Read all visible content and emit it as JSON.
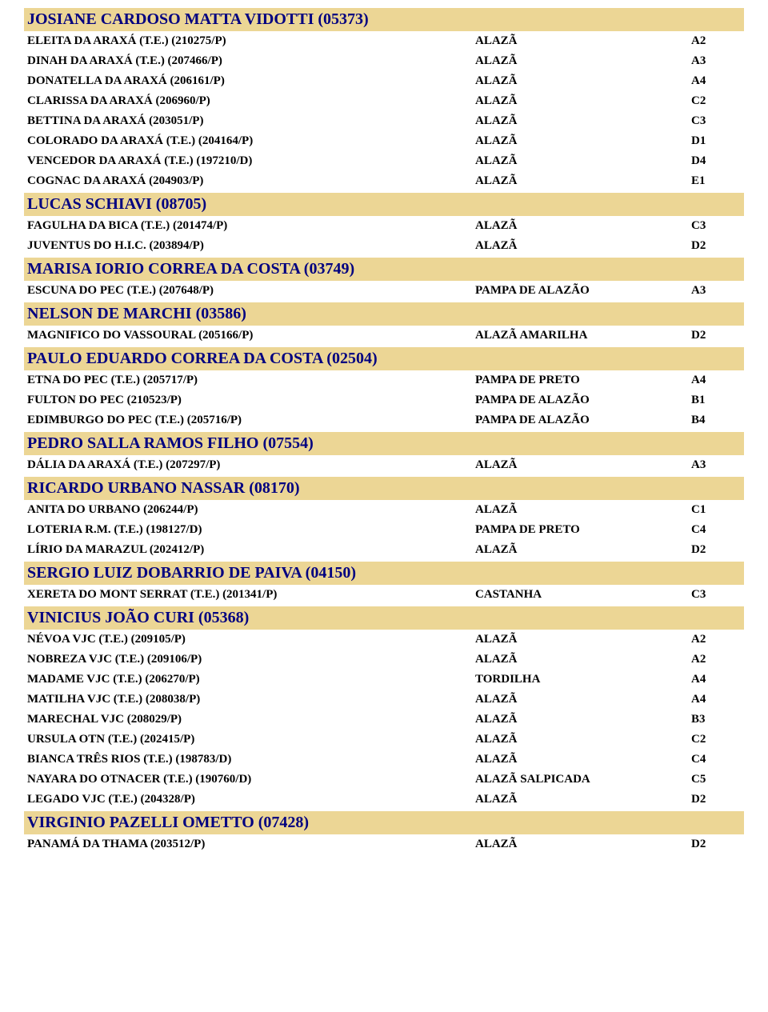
{
  "styles": {
    "header_bg": "#ecd695",
    "header_color": "#000080",
    "header_fontsize": 20,
    "row_fontsize": 15,
    "row_color": "#000000",
    "font_family": "Times New Roman"
  },
  "sections": [
    {
      "title": "JOSIANE CARDOSO MATTA VIDOTTI (05373)",
      "rows": [
        {
          "name": "ELEITA DA ARAXÁ (T.E.) (210275/P)",
          "color": "ALAZÃ",
          "code": "A2"
        },
        {
          "name": "DINAH DA ARAXÁ (T.E.) (207466/P)",
          "color": "ALAZÃ",
          "code": "A3"
        },
        {
          "name": "DONATELLA DA ARAXÁ (206161/P)",
          "color": "ALAZÃ",
          "code": "A4"
        },
        {
          "name": "CLARISSA DA ARAXÁ (206960/P)",
          "color": "ALAZÃ",
          "code": "C2"
        },
        {
          "name": "BETTINA DA ARAXÁ (203051/P)",
          "color": "ALAZÃ",
          "code": "C3"
        },
        {
          "name": "COLORADO DA ARAXÁ (T.E.) (204164/P)",
          "color": "ALAZÃ",
          "code": "D1"
        },
        {
          "name": "VENCEDOR DA ARAXÁ (T.E.) (197210/D)",
          "color": "ALAZÃ",
          "code": "D4"
        },
        {
          "name": "COGNAC DA ARAXÁ (204903/P)",
          "color": "ALAZÃ",
          "code": "E1"
        }
      ]
    },
    {
      "title": "LUCAS SCHIAVI (08705)",
      "rows": [
        {
          "name": "FAGULHA DA BICA (T.E.) (201474/P)",
          "color": "ALAZÃ",
          "code": "C3"
        },
        {
          "name": "JUVENTUS DO H.I.C. (203894/P)",
          "color": "ALAZÃ",
          "code": "D2"
        }
      ]
    },
    {
      "title": "MARISA IORIO CORREA DA COSTA (03749)",
      "rows": [
        {
          "name": "ESCUNA DO PEC (T.E.) (207648/P)",
          "color": "PAMPA DE ALAZÃO",
          "code": "A3"
        }
      ]
    },
    {
      "title": "NELSON DE MARCHI (03586)",
      "rows": [
        {
          "name": "MAGNIFICO DO VASSOURAL (205166/P)",
          "color": "ALAZÃ AMARILHA",
          "code": "D2"
        }
      ]
    },
    {
      "title": "PAULO EDUARDO CORREA DA COSTA (02504)",
      "rows": [
        {
          "name": "ETNA DO PEC (T.E.) (205717/P)",
          "color": "PAMPA DE PRETO",
          "code": "A4"
        },
        {
          "name": "FULTON DO PEC (210523/P)",
          "color": "PAMPA DE ALAZÃO",
          "code": "B1"
        },
        {
          "name": "EDIMBURGO DO PEC (T.E.) (205716/P)",
          "color": "PAMPA DE ALAZÃO",
          "code": "B4"
        }
      ]
    },
    {
      "title": "PEDRO SALLA RAMOS FILHO (07554)",
      "rows": [
        {
          "name": "DÁLIA DA ARAXÁ (T.E.) (207297/P)",
          "color": "ALAZÃ",
          "code": "A3"
        }
      ]
    },
    {
      "title": "RICARDO URBANO NASSAR (08170)",
      "rows": [
        {
          "name": "ANITA DO URBANO (206244/P)",
          "color": "ALAZÃ",
          "code": "C1"
        },
        {
          "name": "LOTERIA R.M. (T.E.) (198127/D)",
          "color": "PAMPA DE PRETO",
          "code": "C4"
        },
        {
          "name": "LÍRIO DA MARAZUL (202412/P)",
          "color": "ALAZÃ",
          "code": "D2"
        }
      ]
    },
    {
      "title": "SERGIO LUIZ DOBARRIO DE PAIVA (04150)",
      "rows": [
        {
          "name": "XERETA DO MONT SERRAT (T.E.) (201341/P)",
          "color": "CASTANHA",
          "code": "C3"
        }
      ]
    },
    {
      "title": "VINICIUS JOÃO CURI (05368)",
      "rows": [
        {
          "name": "NÉVOA VJC (T.E.) (209105/P)",
          "color": "ALAZÃ",
          "code": "A2"
        },
        {
          "name": "NOBREZA VJC (T.E.) (209106/P)",
          "color": "ALAZÃ",
          "code": "A2"
        },
        {
          "name": "MADAME VJC (T.E.) (206270/P)",
          "color": "TORDILHA",
          "code": "A4"
        },
        {
          "name": "MATILHA VJC (T.E.) (208038/P)",
          "color": "ALAZÃ",
          "code": "A4"
        },
        {
          "name": "MARECHAL VJC (208029/P)",
          "color": "ALAZÃ",
          "code": "B3"
        },
        {
          "name": "URSULA OTN (T.E.) (202415/P)",
          "color": "ALAZÃ",
          "code": "C2"
        },
        {
          "name": "BIANCA TRÊS RIOS (T.E.) (198783/D)",
          "color": "ALAZÃ",
          "code": "C4"
        },
        {
          "name": "NAYARA DO OTNACER (T.E.) (190760/D)",
          "color": "ALAZÃ SALPICADA",
          "code": "C5"
        },
        {
          "name": "LEGADO VJC (T.E.) (204328/P)",
          "color": "ALAZÃ",
          "code": "D2"
        }
      ]
    },
    {
      "title": "VIRGINIO PAZELLI OMETTO (07428)",
      "rows": [
        {
          "name": "PANAMÁ DA THAMA (203512/P)",
          "color": "ALAZÃ",
          "code": "D2"
        }
      ]
    }
  ]
}
